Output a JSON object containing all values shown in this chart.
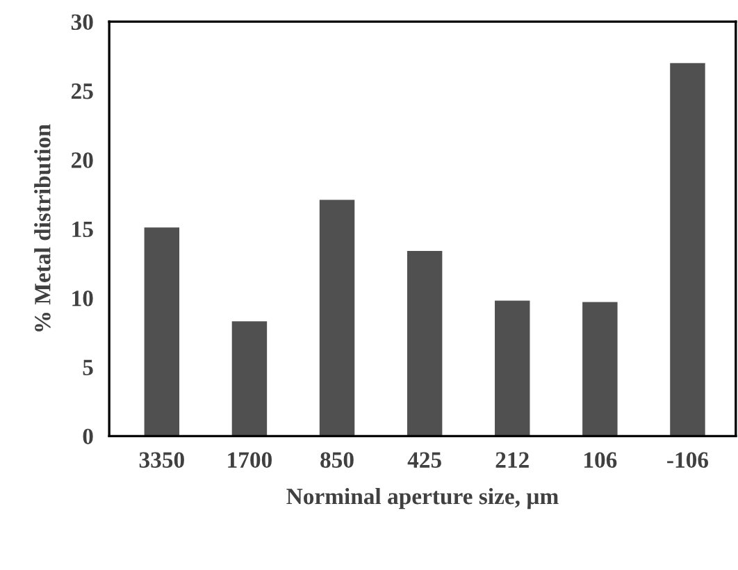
{
  "chart_data": {
    "type": "bar",
    "xlabel": "Norminal aperture size, µm",
    "ylabel": "% Metal distribution",
    "categories": [
      "3350",
      "1700",
      "850",
      "425",
      "212",
      "106",
      "-106"
    ],
    "values": [
      15.1,
      8.3,
      17.1,
      13.4,
      9.8,
      9.7,
      27.0
    ],
    "color": "#505050",
    "ylim": [
      0,
      30
    ],
    "yticks": [
      0,
      5,
      10,
      15,
      20,
      25,
      30
    ],
    "grid": false,
    "legend": false
  }
}
